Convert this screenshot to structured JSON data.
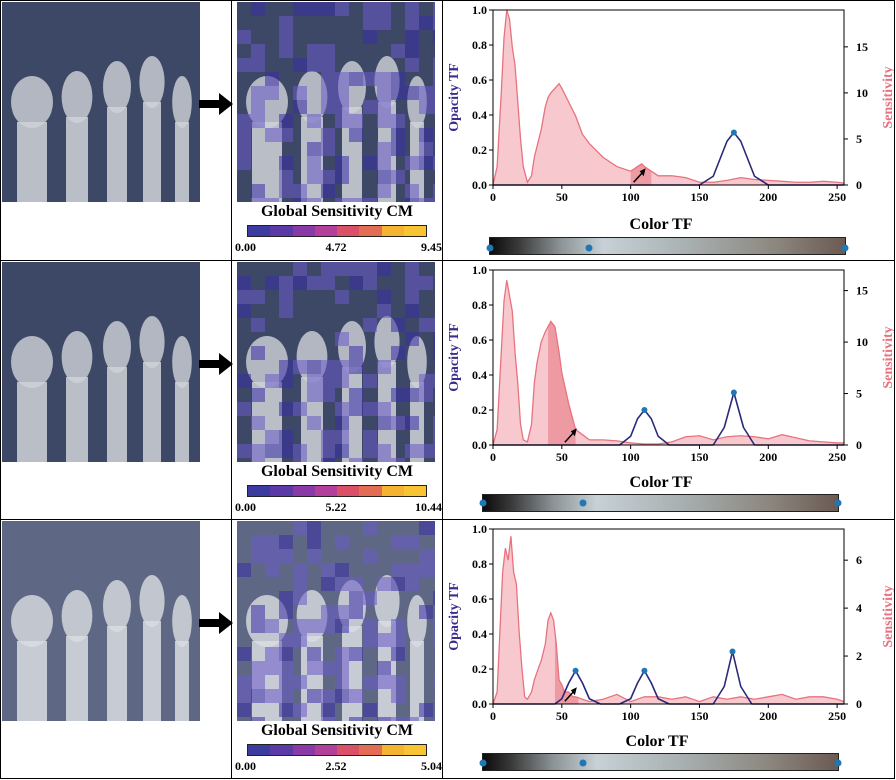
{
  "colormap_colors": [
    "#3b3ba0",
    "#5b3aa8",
    "#8a3aa6",
    "#b2409a",
    "#d95067",
    "#e36c55",
    "#f4b431",
    "#f7c533"
  ],
  "axis_labels": {
    "opacity": "Opacity TF",
    "sensitivity": "Sensitivity"
  },
  "colors": {
    "opacity_line": "#2a2a7a",
    "sensitivity": "#e8727e",
    "sensitivity_fill": "#f7c9cf",
    "point": "#1f77b4"
  },
  "rows": [
    {
      "cm_title": "Global Sensitivity CM",
      "cm_ticks": [
        "0.00",
        "4.72",
        "9.45"
      ],
      "ctf_title": "Color TF",
      "chart_data": {
        "type": "line",
        "title": "",
        "xlabel": "",
        "ylabel": "Opacity TF",
        "y2label": "Sensitivity",
        "xlim": [
          0,
          255
        ],
        "ylim": [
          0,
          1.0
        ],
        "y2lim": [
          0,
          19
        ],
        "xticks": [
          0,
          50,
          100,
          150,
          200,
          250
        ],
        "yticks": [
          0.0,
          0.2,
          0.4,
          0.6,
          0.8,
          1.0
        ],
        "y2ticks": [
          0,
          5,
          10,
          15
        ],
        "opacity_series": {
          "name": "Opacity TF",
          "x": [
            0,
            150,
            160,
            170,
            175,
            180,
            190,
            200,
            255
          ],
          "y": [
            0,
            0,
            0.05,
            0.25,
            0.3,
            0.25,
            0.05,
            0,
            0
          ]
        },
        "opacity_points": [
          [
            175,
            0.3
          ]
        ],
        "sensitivity_series": {
          "name": "Sensitivity",
          "x": [
            0,
            3,
            6,
            8,
            10,
            12,
            14,
            16,
            18,
            20,
            22,
            25,
            28,
            30,
            35,
            38,
            40,
            42,
            45,
            48,
            50,
            55,
            60,
            65,
            70,
            80,
            90,
            100,
            105,
            108,
            110,
            115,
            120,
            130,
            140,
            150,
            160,
            170,
            180,
            190,
            200,
            210,
            220,
            230,
            240,
            250,
            255
          ],
          "y": [
            0,
            2,
            10,
            16,
            19,
            18,
            15,
            13,
            9,
            5,
            2,
            0.3,
            1,
            3,
            6,
            8.5,
            9.5,
            10,
            10.5,
            11,
            10.5,
            9,
            7.5,
            5.5,
            4.5,
            3,
            2,
            1.5,
            2,
            2.3,
            2,
            1.5,
            1,
            1,
            0.8,
            0.3,
            0.3,
            0.5,
            0.8,
            0.6,
            0.5,
            0.4,
            0.3,
            0.3,
            0.4,
            0.3,
            0.2
          ]
        },
        "highlight_range": [
          100,
          115
        ],
        "annotation_arrow_x": 108
      }
    },
    {
      "cm_title": "Global Sensitivity CM",
      "cm_ticks": [
        "0.00",
        "5.22",
        "10.44"
      ],
      "ctf_title": "Color TF",
      "chart_data": {
        "type": "line",
        "title": "",
        "xlabel": "",
        "ylabel": "Opacity TF",
        "y2label": "Sensitivity",
        "xlim": [
          0,
          255
        ],
        "ylim": [
          0,
          1.0
        ],
        "y2lim": [
          0,
          17
        ],
        "xticks": [
          0,
          50,
          100,
          150,
          200,
          250
        ],
        "yticks": [
          0.0,
          0.2,
          0.4,
          0.6,
          0.8,
          1.0
        ],
        "y2ticks": [
          0,
          5,
          10,
          15
        ],
        "opacity_series": {
          "name": "Opacity TF",
          "x": [
            0,
            92,
            100,
            105,
            110,
            115,
            120,
            128,
            160,
            168,
            175,
            182,
            190,
            255
          ],
          "y": [
            0,
            0,
            0.05,
            0.15,
            0.2,
            0.15,
            0.05,
            0,
            0,
            0.1,
            0.3,
            0.1,
            0,
            0
          ]
        },
        "opacity_points": [
          [
            110,
            0.2
          ],
          [
            175,
            0.3
          ]
        ],
        "sensitivity_series": {
          "name": "Sensitivity",
          "x": [
            0,
            3,
            6,
            8,
            10,
            12,
            14,
            16,
            18,
            20,
            22,
            25,
            28,
            30,
            32,
            35,
            38,
            40,
            42,
            45,
            48,
            50,
            55,
            58,
            60,
            65,
            70,
            80,
            90,
            100,
            110,
            120,
            130,
            140,
            150,
            160,
            170,
            180,
            190,
            200,
            210,
            220,
            230,
            240,
            250,
            255
          ],
          "y": [
            0,
            1.5,
            9,
            14,
            16,
            14.5,
            13,
            9,
            6,
            2,
            0.5,
            0.3,
            2,
            6,
            8,
            10,
            11,
            11.5,
            12,
            11.5,
            9,
            7,
            4,
            2.5,
            1.5,
            1,
            0.5,
            0.5,
            0.4,
            0.2,
            0.1,
            0.1,
            0.3,
            0.8,
            0.9,
            0.5,
            0.8,
            0.9,
            0.8,
            0.6,
            1,
            0.7,
            0.4,
            0.3,
            0.2,
            0.2
          ]
        },
        "highlight_range": [
          40,
          60
        ],
        "annotation_arrow_x": 58
      }
    },
    {
      "cm_title": "Global Sensitivity CM",
      "cm_ticks": [
        "0.00",
        "2.52",
        "5.04"
      ],
      "ctf_title": "Color TF",
      "chart_data": {
        "type": "line",
        "title": "",
        "xlabel": "",
        "ylabel": "Opacity TF",
        "y2label": "Sensitivity",
        "xlim": [
          0,
          255
        ],
        "ylim": [
          0,
          1.0
        ],
        "y2lim": [
          0,
          7.3
        ],
        "xticks": [
          0,
          50,
          100,
          150,
          200,
          250
        ],
        "yticks": [
          0.0,
          0.2,
          0.4,
          0.6,
          0.8,
          1.0
        ],
        "y2ticks": [
          0,
          2,
          4,
          6
        ],
        "opacity_series": {
          "name": "Opacity TF",
          "x": [
            0,
            45,
            50,
            55,
            60,
            65,
            70,
            78,
            92,
            100,
            105,
            110,
            115,
            120,
            128,
            160,
            168,
            174,
            180,
            188,
            255
          ],
          "y": [
            0,
            0,
            0.03,
            0.12,
            0.19,
            0.12,
            0.03,
            0,
            0,
            0.03,
            0.12,
            0.19,
            0.12,
            0.03,
            0,
            0,
            0.1,
            0.3,
            0.1,
            0,
            0
          ]
        },
        "opacity_points": [
          [
            60,
            0.19
          ],
          [
            110,
            0.19
          ],
          [
            174,
            0.3
          ]
        ],
        "sensitivity_series": {
          "name": "Sensitivity",
          "x": [
            0,
            3,
            5,
            7,
            9,
            11,
            13,
            15,
            17,
            19,
            21,
            23,
            25,
            28,
            30,
            33,
            35,
            38,
            40,
            42,
            44,
            46,
            48,
            50,
            52,
            55,
            58,
            60,
            65,
            70,
            80,
            90,
            100,
            110,
            120,
            130,
            140,
            150,
            160,
            170,
            180,
            190,
            200,
            210,
            220,
            230,
            240,
            250,
            255
          ],
          "y": [
            0,
            0.5,
            3,
            5.5,
            6.5,
            6,
            7,
            5.5,
            5,
            3,
            1.5,
            0.3,
            0.2,
            0.5,
            1,
            1.5,
            1.8,
            2.5,
            3.5,
            3.8,
            3.5,
            2.5,
            1,
            0.8,
            0.5,
            0.5,
            0.3,
            0.3,
            0.2,
            0.1,
            0.2,
            0.4,
            0.1,
            0.3,
            0.3,
            0.2,
            0.3,
            0.1,
            0.3,
            0.2,
            0.3,
            0.2,
            0.3,
            0.4,
            0.2,
            0.3,
            0.3,
            0.2,
            0.1
          ]
        },
        "highlight_range": [
          45,
          62
        ],
        "annotation_arrow_x": 58
      }
    }
  ]
}
